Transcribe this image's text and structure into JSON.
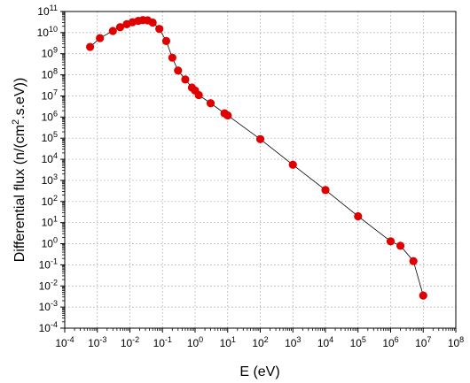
{
  "chart_data": {
    "type": "scatter",
    "title": "",
    "xlabel": "E (eV)",
    "ylabel": "Differential flux (n/(cm².s.eV))",
    "ylabel_parts": {
      "before": "Differential flux (n/(cm",
      "sup": "2",
      "after": ".s.eV))"
    },
    "xscale": "log",
    "yscale": "log",
    "xlim": [
      0.0001,
      100000000
    ],
    "ylim": [
      0.0001,
      100000000000
    ],
    "grid": true,
    "marker_color": "#e00000",
    "line_color": "#000000",
    "x_tick_exponents": [
      -4,
      -3,
      -2,
      -1,
      0,
      1,
      2,
      3,
      4,
      5,
      6,
      7,
      8
    ],
    "y_tick_exponents": [
      -4,
      -3,
      -2,
      -1,
      0,
      1,
      2,
      3,
      4,
      5,
      6,
      7,
      8,
      9,
      10,
      11
    ],
    "tick_base": "10",
    "series": [
      {
        "x": [
          0.0006,
          0.0012,
          0.003,
          0.005,
          0.008,
          0.012,
          0.018,
          0.025,
          0.035,
          0.05,
          0.08,
          0.13,
          0.2,
          0.3,
          0.5,
          0.8,
          1.0,
          1.3,
          3.0,
          8.0,
          10.0,
          100.0,
          1000.0,
          10000.0,
          100000.0,
          1000000.0,
          2000000.0,
          5000000.0,
          10000000.0
        ],
        "y": [
          2100000000.0,
          5500000000.0,
          12000000000.0,
          18000000000.0,
          25000000000.0,
          31000000000.0,
          36000000000.0,
          39000000000.0,
          38000000000.0,
          30000000000.0,
          15000000000.0,
          4000000000.0,
          650000000.0,
          160000000.0,
          60000000.0,
          25000000.0,
          18000000.0,
          11000000.0,
          4500000.0,
          1500000.0,
          1200000.0,
          90000.0,
          5500.0,
          350.0,
          20.0,
          1.3,
          0.8,
          0.15,
          0.0035
        ]
      }
    ]
  }
}
